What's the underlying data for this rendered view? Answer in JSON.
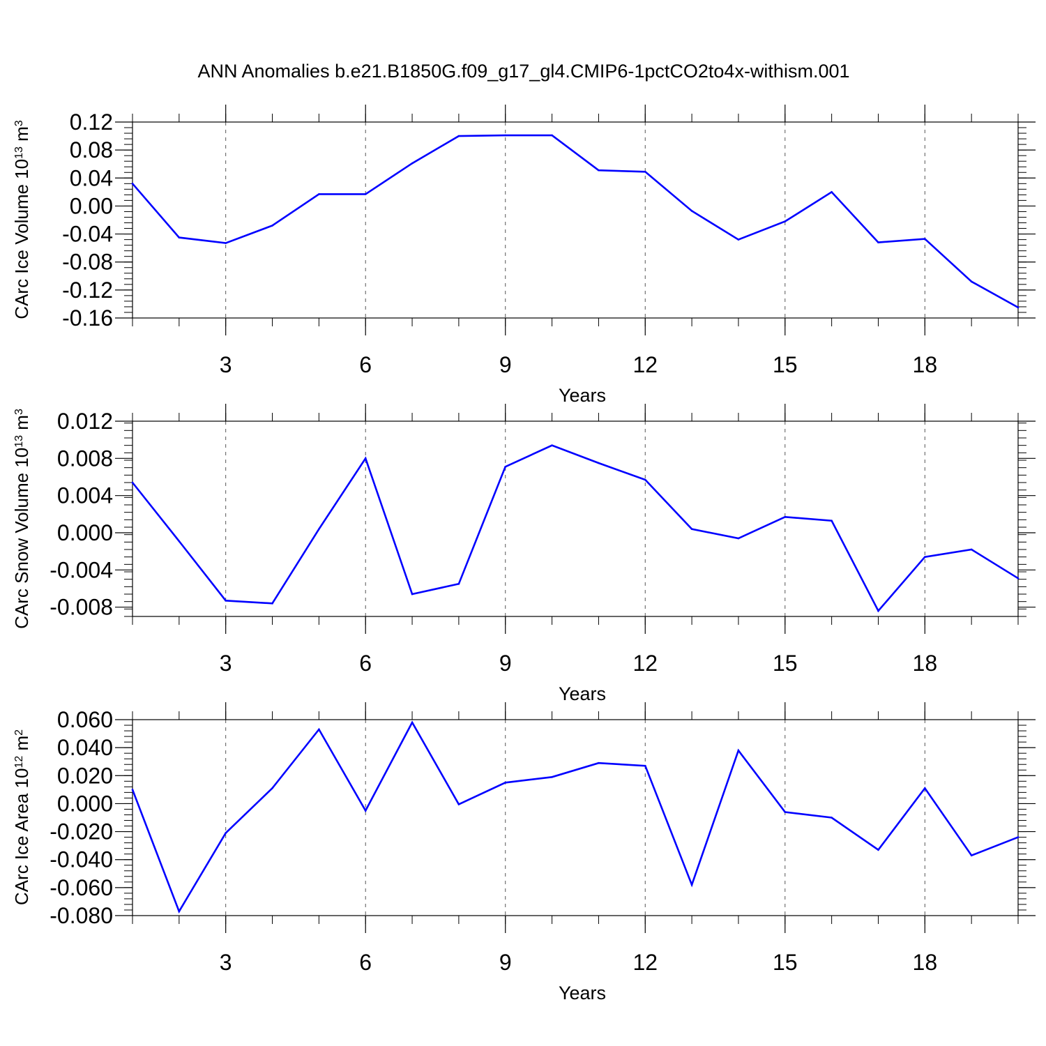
{
  "figure_title": "ANN Anomalies b.e21.B1850G.f09_g17_gl4.CMIP6-1pctCO2to4x-withism.001",
  "line_color": "#0000ff",
  "chart_data": [
    {
      "type": "line",
      "title": "",
      "xlabel": "Years",
      "ylabel": "CArc Ice Volume 10",
      "ylabel_exp": "13",
      "ylabel_unit": " m",
      "ylabel_unit_exp": "3",
      "xlim": [
        1,
        20
      ],
      "ylim": [
        -0.16,
        0.12
      ],
      "xticks": [
        3,
        6,
        9,
        12,
        15,
        18
      ],
      "xtick_labels": [
        "3",
        "6",
        "9",
        "12",
        "15",
        "18"
      ],
      "yticks": [
        -0.16,
        -0.12,
        -0.08,
        -0.04,
        0.0,
        0.04,
        0.08,
        0.12
      ],
      "ytick_labels": [
        "-0.16",
        "-0.12",
        "-0.08",
        "-0.04",
        "0.00",
        "0.04",
        "0.08",
        "0.12"
      ],
      "grid": "vertical dashed at major x ticks",
      "x": [
        1,
        2,
        3,
        4,
        5,
        6,
        7,
        8,
        9,
        10,
        11,
        12,
        13,
        14,
        15,
        16,
        17,
        18,
        19,
        20
      ],
      "values": [
        0.032,
        -0.045,
        -0.053,
        -0.028,
        0.017,
        0.017,
        0.061,
        0.1,
        0.101,
        0.101,
        0.051,
        0.049,
        -0.007,
        -0.048,
        -0.022,
        0.02,
        -0.052,
        -0.047,
        -0.108,
        -0.145
      ]
    },
    {
      "type": "line",
      "title": "",
      "xlabel": "Years",
      "ylabel": "CArc Snow Volume 10",
      "ylabel_exp": "13",
      "ylabel_unit": " m",
      "ylabel_unit_exp": "3",
      "xlim": [
        1,
        20
      ],
      "ylim": [
        -0.009,
        0.012
      ],
      "xticks": [
        3,
        6,
        9,
        12,
        15,
        18
      ],
      "xtick_labels": [
        "3",
        "6",
        "9",
        "12",
        "15",
        "18"
      ],
      "yticks": [
        -0.008,
        -0.004,
        0.0,
        0.004,
        0.008,
        0.012
      ],
      "ytick_labels": [
        "-0.008",
        "-0.004",
        "0.000",
        "0.004",
        "0.008",
        "0.012"
      ],
      "grid": "vertical dashed at major x ticks",
      "x": [
        1,
        2,
        3,
        4,
        5,
        6,
        7,
        8,
        9,
        10,
        11,
        12,
        13,
        14,
        15,
        16,
        17,
        18,
        19,
        20
      ],
      "values": [
        0.0054,
        -0.0009,
        -0.0073,
        -0.0076,
        0.0004,
        0.008,
        -0.0066,
        -0.0055,
        0.0071,
        0.0094,
        0.0075,
        0.0057,
        0.0004,
        -0.0006,
        0.0017,
        0.0013,
        -0.0084,
        -0.0026,
        -0.0018,
        -0.0049
      ]
    },
    {
      "type": "line",
      "title": "",
      "xlabel": "Years",
      "ylabel": "CArc Ice Area 10",
      "ylabel_exp": "12",
      "ylabel_unit": " m",
      "ylabel_unit_exp": "2",
      "xlim": [
        1,
        20
      ],
      "ylim": [
        -0.08,
        0.06
      ],
      "xticks": [
        3,
        6,
        9,
        12,
        15,
        18
      ],
      "xtick_labels": [
        "3",
        "6",
        "9",
        "12",
        "15",
        "18"
      ],
      "yticks": [
        -0.08,
        -0.06,
        -0.04,
        -0.02,
        0.0,
        0.02,
        0.04,
        0.06
      ],
      "ytick_labels": [
        "-0.080",
        "-0.060",
        "-0.040",
        "-0.020",
        "0.000",
        "0.020",
        "0.040",
        "0.060"
      ],
      "grid": "vertical dashed at major x ticks",
      "x": [
        1,
        2,
        3,
        4,
        5,
        6,
        7,
        8,
        9,
        10,
        11,
        12,
        13,
        14,
        15,
        16,
        17,
        18,
        19,
        20
      ],
      "values": [
        0.01,
        -0.077,
        -0.021,
        0.011,
        0.053,
        -0.005,
        0.058,
        -0.0005,
        0.015,
        0.019,
        0.029,
        0.027,
        -0.058,
        0.038,
        -0.006,
        -0.01,
        -0.033,
        0.011,
        -0.037,
        -0.024
      ]
    }
  ]
}
